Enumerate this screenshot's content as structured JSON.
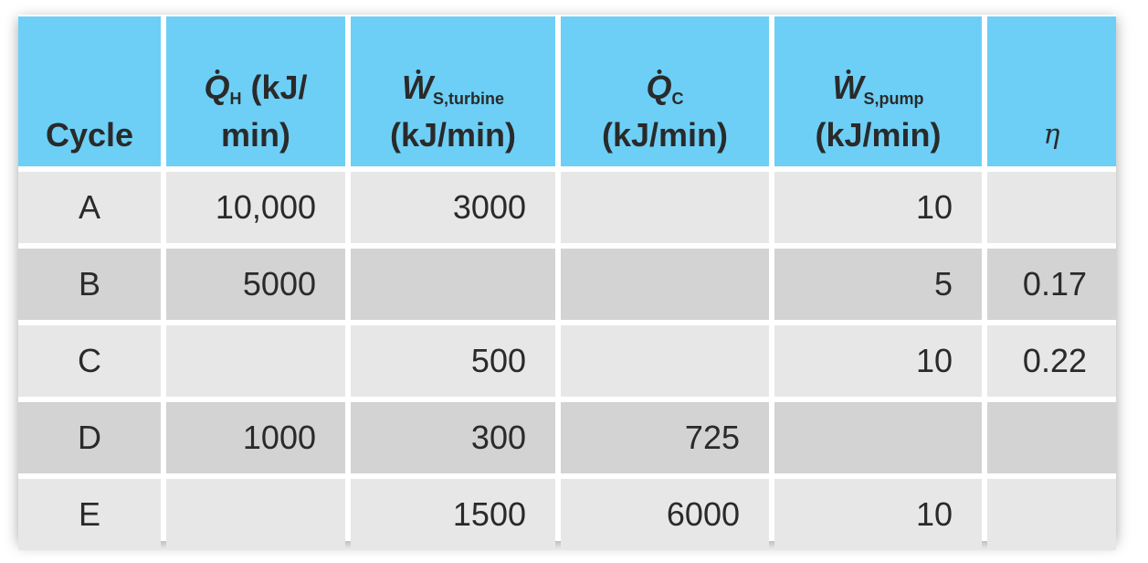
{
  "table": {
    "headers": [
      {
        "text": "Cycle"
      },
      {
        "symbol": "Q",
        "subscript": "H",
        "unit": [
          "(kJ/",
          "min)"
        ]
      },
      {
        "symbol": "W",
        "subscript": "S,turbine",
        "unit": [
          "(kJ/min)"
        ]
      },
      {
        "symbol": "Q",
        "subscript": "C",
        "unit": [
          "(kJ/min)"
        ]
      },
      {
        "symbol": "W",
        "subscript": "S,pump",
        "unit": [
          "(kJ/min)"
        ]
      },
      {
        "symbol": "η"
      }
    ],
    "rows": [
      [
        "A",
        "10,000",
        "3000",
        null,
        "10",
        null
      ],
      [
        "B",
        "5000",
        null,
        null,
        "5",
        "0.17"
      ],
      [
        "C",
        null,
        "500",
        null,
        "10",
        "0.22"
      ],
      [
        "D",
        "1000",
        "300",
        "725",
        null,
        null
      ],
      [
        "E",
        null,
        "1500",
        "6000",
        "10",
        null
      ]
    ]
  }
}
